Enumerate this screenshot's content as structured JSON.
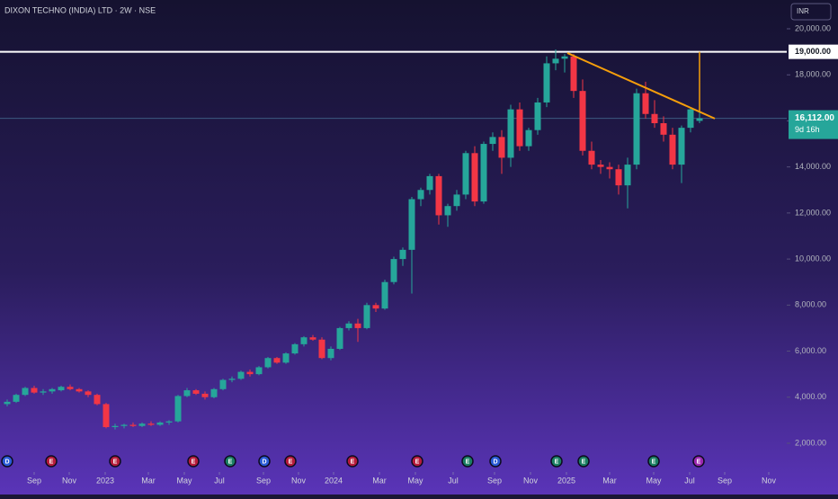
{
  "chart_data": {
    "type": "candlestick",
    "title": "DIXON TECHNO (INDIA) LTD · 2W · NSE",
    "currency": "INR",
    "countdown": "9d 16h",
    "up_color": "#26a69a",
    "down_color": "#f23645",
    "x": [
      0,
      1,
      2,
      3,
      4,
      5,
      6,
      7,
      8,
      9,
      10,
      11,
      12,
      13,
      14,
      15,
      16,
      17,
      18,
      19,
      20,
      21,
      22,
      23,
      24,
      25,
      26,
      27,
      28,
      29,
      30,
      31,
      32,
      33,
      34,
      35,
      36,
      37,
      38,
      39,
      40,
      41,
      42,
      43,
      44,
      45,
      46,
      47,
      48,
      49,
      50,
      51,
      52,
      53,
      54,
      55,
      56,
      57,
      58,
      59,
      60,
      61,
      62,
      63,
      64,
      65,
      66,
      67,
      68,
      69,
      70,
      71,
      72,
      73,
      74,
      75,
      76,
      77
    ],
    "open": [
      3700,
      3800,
      4100,
      4400,
      4200,
      4250,
      4300,
      4450,
      4350,
      4250,
      4100,
      3700,
      2700,
      2750,
      2800,
      2750,
      2850,
      2800,
      2900,
      2950,
      4050,
      4300,
      4150,
      4000,
      4350,
      4750,
      4800,
      5100,
      5000,
      5300,
      5700,
      5500,
      5900,
      6300,
      6600,
      6500,
      5700,
      6100,
      7000,
      7200,
      7000,
      8000,
      7850,
      9000,
      10000,
      10400,
      12600,
      13000,
      13600,
      11900,
      12300,
      12800,
      14600,
      12500,
      15000,
      15300,
      14400,
      16500,
      14900,
      15600,
      16800,
      18500,
      18700,
      18800,
      17300,
      14700,
      14100,
      14000,
      13900,
      13200,
      14100,
      17200,
      16300,
      15900,
      15400,
      14100,
      15700,
      16000
    ],
    "high": [
      3900,
      4150,
      4450,
      4500,
      4350,
      4400,
      4500,
      4550,
      4400,
      4300,
      4150,
      3750,
      2850,
      2850,
      2900,
      2900,
      2950,
      2950,
      3000,
      4100,
      4400,
      4350,
      4250,
      4400,
      4800,
      4900,
      5150,
      5200,
      5350,
      5750,
      5750,
      5950,
      6350,
      6650,
      6700,
      6600,
      6200,
      7050,
      7300,
      7400,
      8100,
      8100,
      9100,
      10100,
      10500,
      12700,
      13100,
      13700,
      13700,
      12400,
      13000,
      14700,
      14900,
      15100,
      15500,
      15600,
      16700,
      16800,
      15700,
      17000,
      18800,
      19100,
      18900,
      18900,
      17800,
      15100,
      14300,
      14200,
      14100,
      14400,
      17400,
      17700,
      16900,
      16200,
      15700,
      15800,
      16600,
      16400
    ],
    "low": [
      3600,
      3750,
      4050,
      4150,
      4100,
      4150,
      4250,
      4300,
      4200,
      4000,
      3650,
      2650,
      2600,
      2650,
      2700,
      2700,
      2750,
      2750,
      2800,
      2900,
      4000,
      4100,
      3900,
      3950,
      4300,
      4650,
      4750,
      4900,
      4950,
      5250,
      5450,
      5450,
      5850,
      6200,
      6450,
      5650,
      5600,
      6050,
      6900,
      6400,
      6950,
      7700,
      7800,
      8900,
      9700,
      8500,
      12300,
      12800,
      11500,
      11400,
      12100,
      12600,
      12300,
      12400,
      14700,
      13700,
      14000,
      14700,
      14700,
      15400,
      16600,
      18200,
      18100,
      17000,
      14500,
      13900,
      13700,
      13500,
      12800,
      12200,
      13900,
      16100,
      15700,
      15100,
      13900,
      13300,
      15500,
      15900
    ],
    "close": [
      3800,
      4100,
      4400,
      4200,
      4250,
      4350,
      4450,
      4350,
      4250,
      4100,
      3700,
      2700,
      2750,
      2800,
      2750,
      2850,
      2800,
      2900,
      2950,
      4050,
      4300,
      4150,
      4000,
      4350,
      4750,
      4800,
      5100,
      5000,
      5300,
      5700,
      5500,
      5900,
      6300,
      6600,
      6500,
      5700,
      6100,
      7000,
      7200,
      7000,
      8000,
      7850,
      9000,
      10000,
      10400,
      12600,
      13000,
      13600,
      11900,
      12300,
      12800,
      14600,
      12500,
      15000,
      15300,
      14400,
      16500,
      14900,
      15600,
      16800,
      18500,
      18700,
      18800,
      17300,
      14700,
      14100,
      14000,
      13900,
      13200,
      14100,
      17200,
      16300,
      15900,
      15400,
      14100,
      15700,
      16500,
      16112
    ],
    "last_price": {
      "value": 16112,
      "label": "16,112.00"
    },
    "level_line": {
      "value": 19000,
      "label": "19,000.00",
      "color": "#ffffff"
    },
    "trendline": {
      "x": [
        62.3,
        78.7
      ],
      "y": [
        18950,
        16100
      ],
      "color": "#f59e0b"
    },
    "vertical_line": {
      "x": 77,
      "y": [
        16400,
        19000
      ],
      "color": "#f59e0b"
    },
    "xlim": [
      -0.8,
      86.7
    ],
    "xticks": [
      {
        "value": 3,
        "label": "Sep"
      },
      {
        "value": 6.9,
        "label": "Nov"
      },
      {
        "value": 10.9,
        "label": "2023"
      },
      {
        "value": 15.7,
        "label": "Mar"
      },
      {
        "value": 19.7,
        "label": "May"
      },
      {
        "value": 23.6,
        "label": "Jul"
      },
      {
        "value": 28.5,
        "label": "Sep"
      },
      {
        "value": 32.4,
        "label": "Nov"
      },
      {
        "value": 36.3,
        "label": "2024"
      },
      {
        "value": 41.4,
        "label": "Mar"
      },
      {
        "value": 45.4,
        "label": "May"
      },
      {
        "value": 49.6,
        "label": "Jul"
      },
      {
        "value": 54.2,
        "label": "Sep"
      },
      {
        "value": 58.2,
        "label": "Nov"
      },
      {
        "value": 62.2,
        "label": "2025"
      },
      {
        "value": 67,
        "label": "Mar"
      },
      {
        "value": 71.9,
        "label": "May"
      },
      {
        "value": 75.9,
        "label": "Jul"
      },
      {
        "value": 79.8,
        "label": "Sep"
      },
      {
        "value": 84.7,
        "label": "Nov"
      }
    ],
    "ylim": [
      1140,
      21250
    ],
    "yticks": [
      {
        "value": 2000,
        "label": "2,000.00"
      },
      {
        "value": 4000,
        "label": "4,000.00"
      },
      {
        "value": 6000,
        "label": "6,000.00"
      },
      {
        "value": 8000,
        "label": "8,000.00"
      },
      {
        "value": 10000,
        "label": "10,000.00"
      },
      {
        "value": 12000,
        "label": "12,000.00"
      },
      {
        "value": 14000,
        "label": "14,000.00"
      },
      {
        "value": 16000,
        "label": "16,000.00"
      },
      {
        "value": 18000,
        "label": "18,000.00"
      },
      {
        "value": 20000,
        "label": "20,000.00"
      }
    ],
    "events": [
      {
        "label": "D",
        "x": 0,
        "color": "#2a5bd7"
      },
      {
        "label": "E",
        "x": 4.9,
        "color": "#b71c3c"
      },
      {
        "label": "E",
        "x": 12,
        "color": "#b71c3c"
      },
      {
        "label": "E",
        "x": 20.7,
        "color": "#b71c3c"
      },
      {
        "label": "E",
        "x": 24.8,
        "color": "#1b7f63"
      },
      {
        "label": "D",
        "x": 28.6,
        "color": "#2a5bd7"
      },
      {
        "label": "E",
        "x": 31.5,
        "color": "#b71c3c"
      },
      {
        "label": "E",
        "x": 38.4,
        "color": "#b71c3c"
      },
      {
        "label": "E",
        "x": 45.6,
        "color": "#b71c3c"
      },
      {
        "label": "E",
        "x": 51.2,
        "color": "#1b7f63"
      },
      {
        "label": "D",
        "x": 54.3,
        "color": "#2a5bd7"
      },
      {
        "label": "E",
        "x": 61.1,
        "color": "#1b7f63"
      },
      {
        "label": "E",
        "x": 64.1,
        "color": "#1b7f63"
      },
      {
        "label": "E",
        "x": 71.9,
        "color": "#1b7f63"
      },
      {
        "label": "E",
        "x": 76.9,
        "color": "#9c27b0"
      }
    ]
  }
}
